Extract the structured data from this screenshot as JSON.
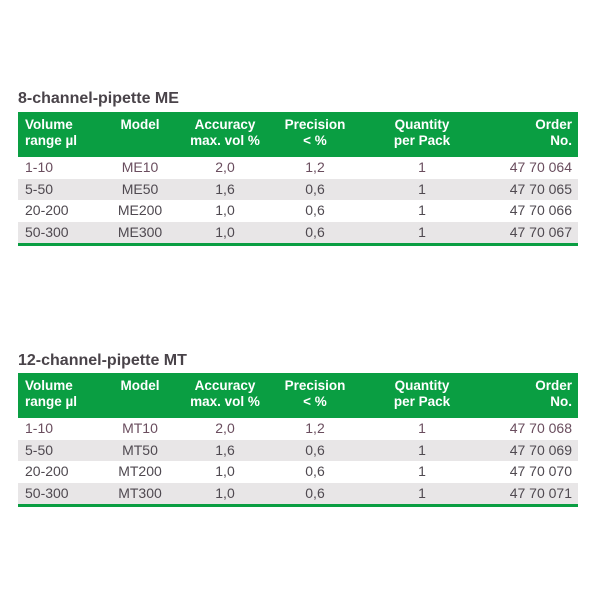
{
  "colors": {
    "header_bg": "#0a9e42",
    "header_text": "#ffffff",
    "row_alt_bg": "#e8e6e7",
    "row_text": "#4f4950",
    "row_first_text": "#6a4d5e",
    "title_text": "#494349",
    "table_bottom_border": "#0a9e42",
    "page_bg": "#ffffff"
  },
  "tables": [
    {
      "title": "8-channel-pipette ME",
      "columns": [
        {
          "label_line1": "Volume",
          "label_line2": "range µl"
        },
        {
          "label_line1": "Model",
          "label_line2": ""
        },
        {
          "label_line1": "Accuracy",
          "label_line2": "max. vol %"
        },
        {
          "label_line1": "Precision",
          "label_line2": "< %"
        },
        {
          "label_line1": "Quantity",
          "label_line2": "per Pack"
        },
        {
          "label_line1": "Order",
          "label_line2": "No."
        }
      ],
      "rows": [
        [
          "1-10",
          "ME10",
          "2,0",
          "1,2",
          "1",
          "47 70 064"
        ],
        [
          "5-50",
          "ME50",
          "1,6",
          "0,6",
          "1",
          "47 70 065"
        ],
        [
          "20-200",
          "ME200",
          "1,0",
          "0,6",
          "1",
          "47 70 066"
        ],
        [
          "50-300",
          "ME300",
          "1,0",
          "0,6",
          "1",
          "47 70 067"
        ]
      ]
    },
    {
      "title": "12-channel-pipette MT",
      "columns": [
        {
          "label_line1": "Volume",
          "label_line2": "range µl"
        },
        {
          "label_line1": "Model",
          "label_line2": ""
        },
        {
          "label_line1": "Accuracy",
          "label_line2": "max. vol %"
        },
        {
          "label_line1": "Precision",
          "label_line2": "< %"
        },
        {
          "label_line1": "Quantity",
          "label_line2": "per Pack"
        },
        {
          "label_line1": "Order",
          "label_line2": "No."
        }
      ],
      "rows": [
        [
          "1-10",
          "MT10",
          "2,0",
          "1,2",
          "1",
          "47 70 068"
        ],
        [
          "5-50",
          "MT50",
          "1,6",
          "0,6",
          "1",
          "47 70 069"
        ],
        [
          "20-200",
          "MT200",
          "1,0",
          "0,6",
          "1",
          "47 70 070"
        ],
        [
          "50-300",
          "MT300",
          "1,0",
          "0,6",
          "1",
          "47 70 071"
        ]
      ]
    }
  ]
}
